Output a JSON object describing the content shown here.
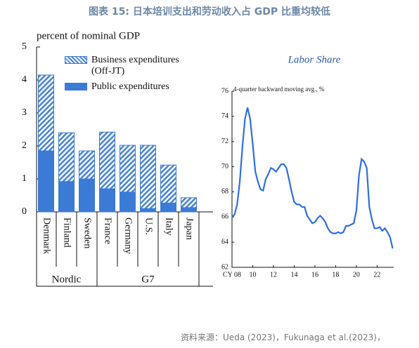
{
  "title": "图表 15: 日本培训支出和劳动收入占 GDP 比重均较低",
  "source": "资料来源：Ueda (2023)，Fukunaga et al.(2023)，",
  "chart_data": [
    {
      "type": "bar",
      "stacked": true,
      "y_label": "percent of nominal GDP",
      "groups": [
        {
          "name": "Nordic",
          "categories": [
            "Denmark",
            "Finland",
            "Sweden"
          ]
        },
        {
          "name": "G7",
          "categories": [
            "France",
            "Germany",
            "U.S.",
            "Italy",
            "Japan"
          ]
        }
      ],
      "series": [
        {
          "name": "Public expenditures",
          "color": "#3b7bd6",
          "values": [
            1.85,
            0.92,
            1.0,
            0.7,
            0.6,
            0.1,
            0.27,
            0.13
          ]
        },
        {
          "name": "Business expenditures (Off-JT)",
          "color": "#4a86d8",
          "hatch": true,
          "values": [
            2.3,
            1.48,
            0.85,
            1.72,
            1.42,
            1.92,
            1.15,
            0.3
          ]
        }
      ],
      "ylim": [
        0,
        5
      ],
      "yticks": [
        0,
        1,
        2,
        3,
        4,
        5
      ],
      "legend": "upper right"
    },
    {
      "type": "line",
      "title": "Labor Share",
      "annotation": "4-quarter backward moving avg., %",
      "x": [
        2008.0,
        2008.25,
        2008.5,
        2008.75,
        2009.0,
        2009.25,
        2009.5,
        2009.75,
        2010.0,
        2010.25,
        2010.5,
        2010.75,
        2011.0,
        2011.25,
        2011.5,
        2011.75,
        2012.0,
        2012.25,
        2012.5,
        2012.75,
        2013.0,
        2013.25,
        2013.5,
        2013.75,
        2014.0,
        2014.25,
        2014.5,
        2014.75,
        2015.0,
        2015.25,
        2015.5,
        2015.75,
        2016.0,
        2016.25,
        2016.5,
        2016.75,
        2017.0,
        2017.25,
        2017.5,
        2017.75,
        2018.0,
        2018.25,
        2018.5,
        2018.75,
        2019.0,
        2019.25,
        2019.5,
        2019.75,
        2020.0,
        2020.25,
        2020.5,
        2020.75,
        2021.0,
        2021.25,
        2021.5,
        2021.75,
        2022.0,
        2022.25,
        2022.5,
        2022.75,
        2023.0,
        2023.25,
        2023.5
      ],
      "values": [
        66.0,
        66.2,
        67.0,
        68.8,
        71.5,
        73.8,
        74.7,
        73.8,
        71.8,
        69.6,
        68.8,
        68.2,
        68.1,
        69.0,
        69.4,
        69.9,
        69.8,
        69.6,
        69.9,
        70.2,
        70.2,
        69.9,
        69.0,
        68.0,
        67.2,
        67.0,
        67.0,
        66.8,
        66.8,
        66.1,
        65.8,
        65.5,
        65.6,
        65.9,
        66.1,
        65.9,
        65.6,
        65.1,
        64.8,
        64.7,
        64.7,
        64.8,
        64.7,
        64.8,
        65.3,
        65.3,
        65.4,
        65.5,
        66.5,
        69.3,
        70.6,
        70.4,
        69.9,
        66.8,
        65.8,
        65.1,
        65.1,
        65.2,
        64.9,
        65.1,
        64.8,
        64.4,
        63.5
      ],
      "color": "#2f6fe0",
      "xlim": [
        2008,
        2023.6
      ],
      "xticks": [
        {
          "value": 2008,
          "label": "CY 08"
        },
        {
          "value": 2010,
          "label": "10"
        },
        {
          "value": 2012,
          "label": "12"
        },
        {
          "value": 2014,
          "label": "14"
        },
        {
          "value": 2016,
          "label": "16"
        },
        {
          "value": 2018,
          "label": "18"
        },
        {
          "value": 2020,
          "label": "20"
        },
        {
          "value": 2022,
          "label": "22"
        }
      ],
      "ylim": [
        62,
        76
      ],
      "yticks": [
        62,
        64,
        66,
        68,
        70,
        72,
        74,
        76
      ]
    }
  ]
}
